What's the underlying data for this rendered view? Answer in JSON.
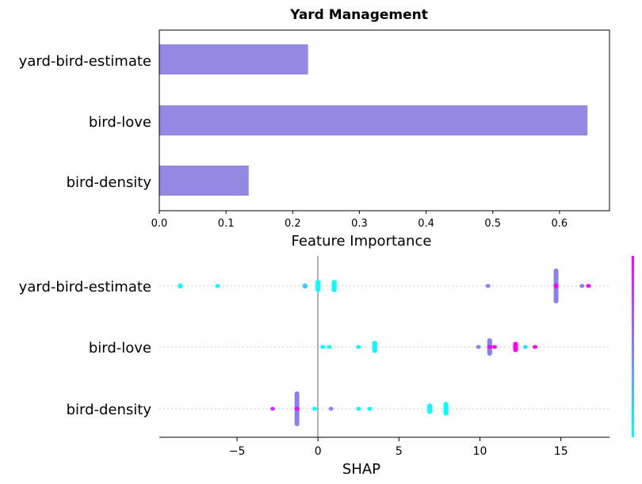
{
  "chart_data": [
    {
      "type": "bar",
      "orientation": "horizontal",
      "title": "Yard Management",
      "categories": [
        "yard-bird-estimate",
        "bird-love",
        "bird-density"
      ],
      "values": [
        0.223,
        0.642,
        0.134
      ],
      "xlabel": "Feature Importance",
      "ylabel": "",
      "xlim": [
        0.0,
        0.675
      ],
      "xticks": [
        "0.0",
        "0.1",
        "0.2",
        "0.3",
        "0.4",
        "0.5",
        "0.6"
      ],
      "color": "#9388e2",
      "grid": false
    },
    {
      "type": "scatter",
      "subtype": "shap-beeswarm",
      "categories": [
        "yard-bird-estimate",
        "bird-love",
        "bird-density"
      ],
      "xlabel": "SHAP",
      "xlim": [
        -9.8,
        18.0
      ],
      "xticks": [
        "−5",
        "0",
        "5",
        "10",
        "15"
      ],
      "colormap": [
        "#00ffff",
        "#ff00ff"
      ],
      "points": [
        {
          "feature": "yard-bird-estimate",
          "shap": -8.5,
          "value": 0.0,
          "spread": 0.15
        },
        {
          "feature": "yard-bird-estimate",
          "shap": -6.2,
          "value": 0.0,
          "spread": 0.05
        },
        {
          "feature": "yard-bird-estimate",
          "shap": -0.8,
          "value": 0.2,
          "spread": 0.15
        },
        {
          "feature": "yard-bird-estimate",
          "shap": 0.0,
          "value": 0.0,
          "spread": 0.35
        },
        {
          "feature": "yard-bird-estimate",
          "shap": 1.0,
          "value": 0.0,
          "spread": 0.35
        },
        {
          "feature": "yard-bird-estimate",
          "shap": 10.5,
          "value": 0.4,
          "spread": 0.05
        },
        {
          "feature": "yard-bird-estimate",
          "shap": 14.7,
          "value": 0.5,
          "spread": 1.0
        },
        {
          "feature": "yard-bird-estimate",
          "shap": 14.7,
          "value": 1.0,
          "spread": 0.15
        },
        {
          "feature": "yard-bird-estimate",
          "shap": 16.3,
          "value": 0.6,
          "spread": 0.1
        },
        {
          "feature": "yard-bird-estimate",
          "shap": 16.7,
          "value": 1.0,
          "spread": 0.1
        },
        {
          "feature": "bird-love",
          "shap": 0.3,
          "value": 0.0,
          "spread": 0.05
        },
        {
          "feature": "bird-love",
          "shap": 0.7,
          "value": 0.0,
          "spread": 0.1
        },
        {
          "feature": "bird-love",
          "shap": 2.5,
          "value": 0.0,
          "spread": 0.1
        },
        {
          "feature": "bird-love",
          "shap": 3.5,
          "value": 0.0,
          "spread": 0.35
        },
        {
          "feature": "bird-love",
          "shap": 9.9,
          "value": 0.4,
          "spread": 0.1
        },
        {
          "feature": "bird-love",
          "shap": 10.6,
          "value": 0.0,
          "spread": 0.5
        },
        {
          "feature": "bird-love",
          "shap": 10.6,
          "value": 0.5,
          "spread": 0.5
        },
        {
          "feature": "bird-love",
          "shap": 10.6,
          "value": 1.0,
          "spread": 0.1
        },
        {
          "feature": "bird-love",
          "shap": 10.9,
          "value": 1.0,
          "spread": 0.05
        },
        {
          "feature": "bird-love",
          "shap": 12.2,
          "value": 1.0,
          "spread": 0.3
        },
        {
          "feature": "bird-love",
          "shap": 12.8,
          "value": 0.1,
          "spread": 0.05
        },
        {
          "feature": "bird-love",
          "shap": 13.4,
          "value": 1.0,
          "spread": 0.05
        },
        {
          "feature": "bird-density",
          "shap": -2.8,
          "value": 0.8,
          "spread": 0.1
        },
        {
          "feature": "bird-density",
          "shap": -1.3,
          "value": 0.5,
          "spread": 1.0
        },
        {
          "feature": "bird-density",
          "shap": -1.3,
          "value": 1.0,
          "spread": 0.1
        },
        {
          "feature": "bird-density",
          "shap": -0.2,
          "value": 0.0,
          "spread": 0.05
        },
        {
          "feature": "bird-density",
          "shap": 0.8,
          "value": 0.4,
          "spread": 0.1
        },
        {
          "feature": "bird-density",
          "shap": 2.5,
          "value": 0.0,
          "spread": 0.1
        },
        {
          "feature": "bird-density",
          "shap": 3.2,
          "value": 0.0,
          "spread": 0.05
        },
        {
          "feature": "bird-density",
          "shap": 6.9,
          "value": 0.0,
          "spread": 0.3
        },
        {
          "feature": "bird-density",
          "shap": 7.9,
          "value": 0.0,
          "spread": 0.4
        }
      ]
    }
  ]
}
